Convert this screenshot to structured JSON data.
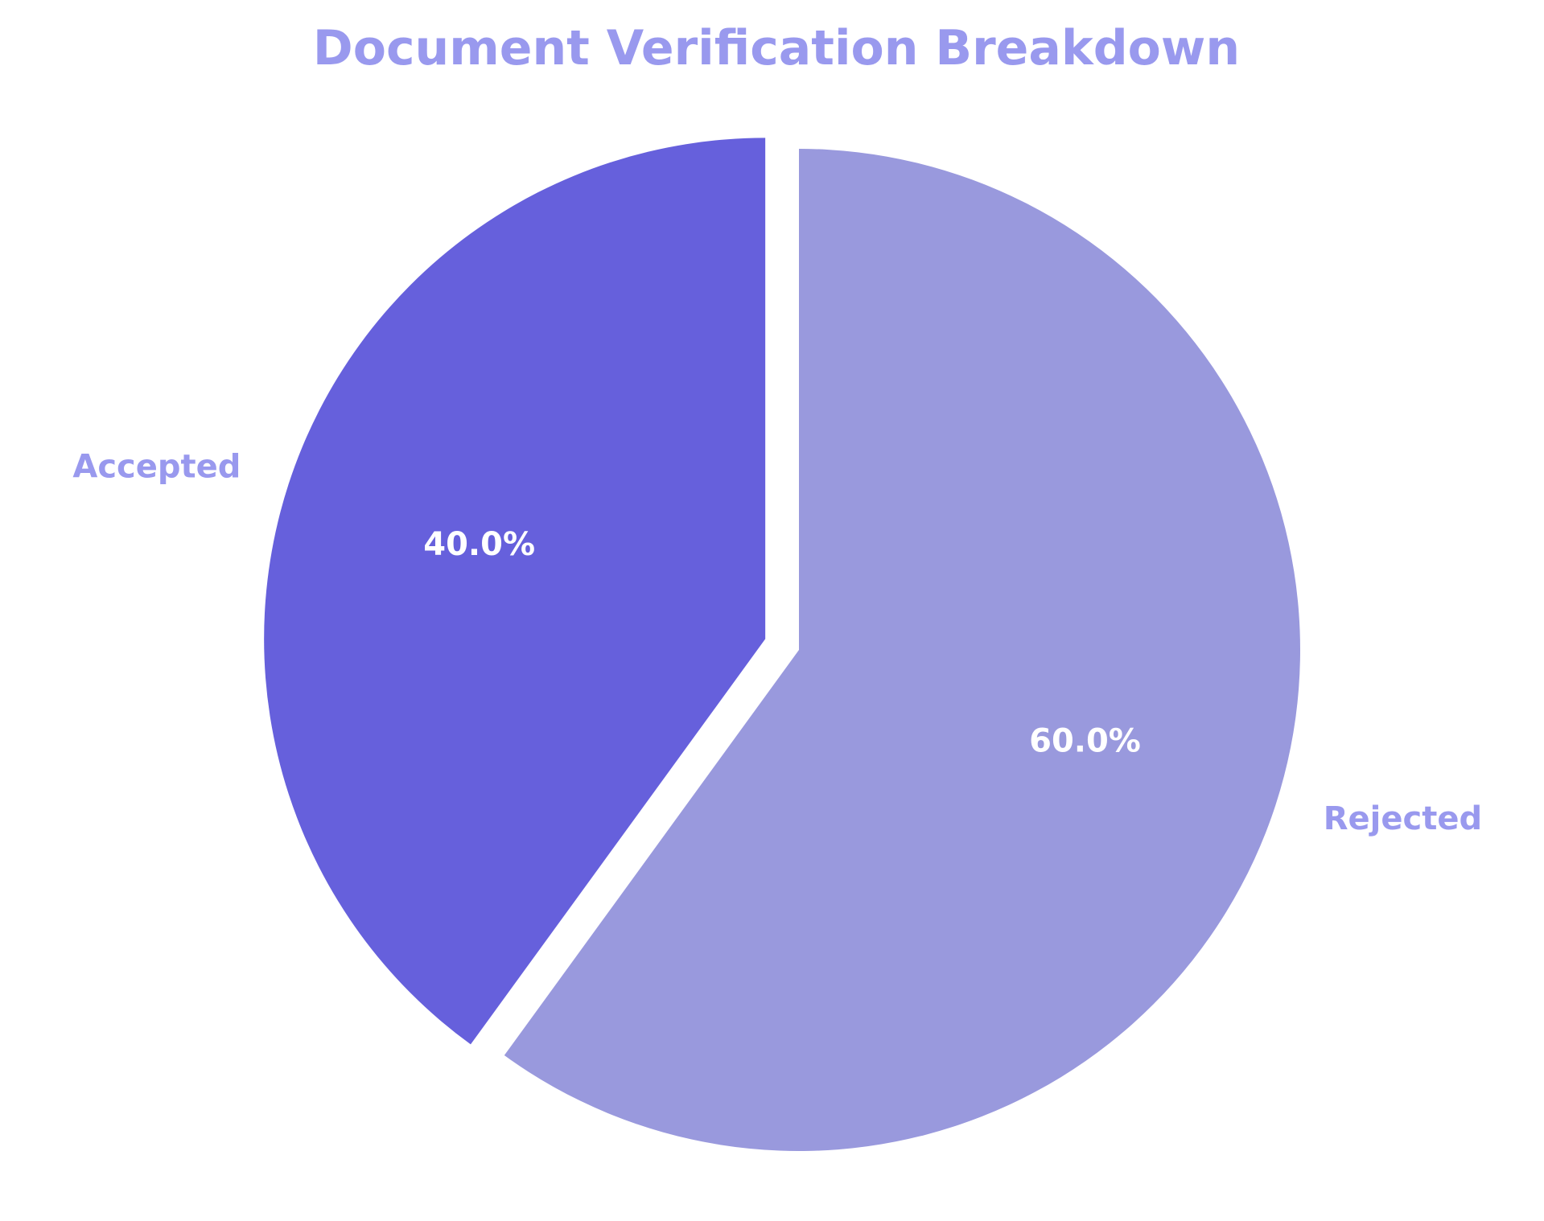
{
  "chart_data": {
    "type": "pie",
    "title": "Document Verification Breakdown",
    "slices": [
      {
        "label": "Accepted",
        "value": 40.0,
        "pct_label": "40.0%",
        "color": "#6660dc",
        "exploded": true
      },
      {
        "label": "Rejected",
        "value": 60.0,
        "pct_label": "60.0%",
        "color": "#9999dd",
        "exploded": false
      }
    ],
    "start_angle": "top",
    "direction": "counterclockwise",
    "label_color": "#9999ee",
    "pct_label_color": "#ffffff"
  }
}
